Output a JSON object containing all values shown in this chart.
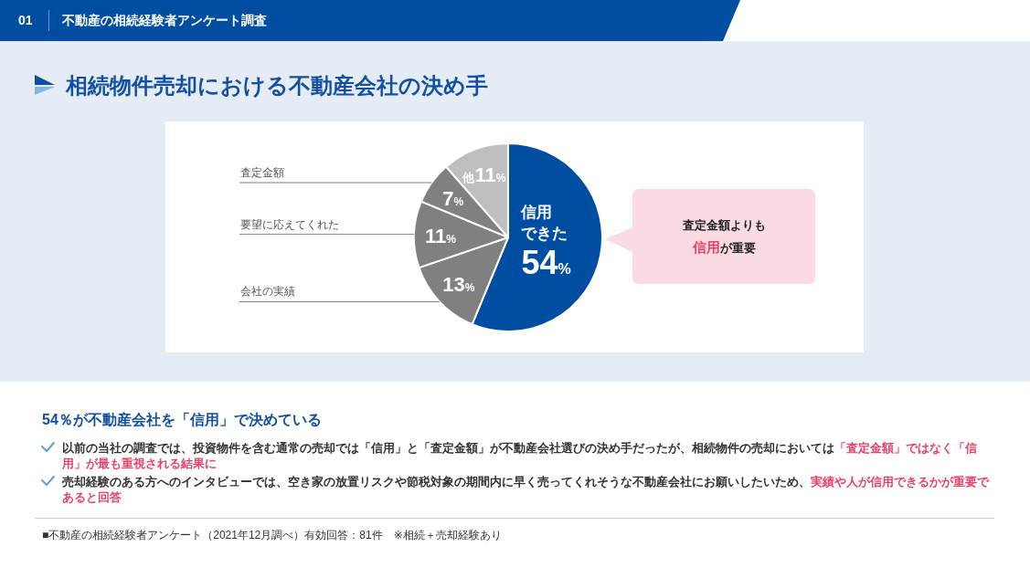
{
  "chart_data": {
    "type": "pie",
    "title": "相続物件売却における不動産会社の決め手",
    "subtitle": "54％が不動産会社を「信用」で決めている",
    "categories": [
      "信用できた",
      "会社の実績",
      "要望に応えてくれた",
      "査定金額",
      "他"
    ],
    "values": [
      54,
      13,
      11,
      7,
      11
    ],
    "colors": [
      "#004ea2",
      "#808080",
      "#808080",
      "#808080",
      "#bfbfbf"
    ],
    "value_labels": [
      "54%",
      "13%",
      "11%",
      "7%",
      "11%"
    ],
    "annotations": [
      "01",
      "不動産の相続経験者アンケート調査",
      "査定金額よりも",
      "信用",
      "が重要",
      "以前の当社の調査では、投資物件を含む通常の売却では「信用」と「査定金額」が不動産会社選びの決め手だったが、相続物件の売却においては",
      "「査定金額」ではなく「信用」が最も重視される結果に",
      "売却経験のある方へのインタビューでは、空き家の放置リスクや節税対象の期間内に早く売ってくれそうな不動産会社にお願いしたいため、",
      "実績や人が信用できるかが重要であると回答",
      "■不動産の相続経験者アンケート（2021年12月調べ）有効回答：81件　※相続＋売却経験あり"
    ]
  }
}
